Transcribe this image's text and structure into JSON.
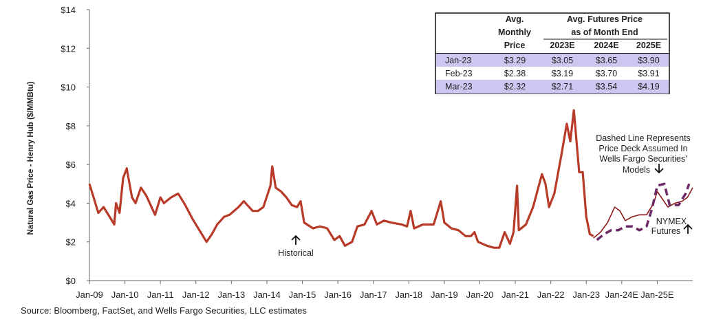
{
  "chart_data": {
    "type": "line",
    "y_label": "Natural Gas Price - Henry Hub ($/MMBtu)",
    "source": "Source: Bloomberg, FactSet, and Wells Fargo Securities, LLC estimates",
    "xlim": [
      2009,
      2026
    ],
    "xticks": [
      {
        "value": 2009,
        "label": "Jan-09"
      },
      {
        "value": 2010,
        "label": "Jan-10"
      },
      {
        "value": 2011,
        "label": "Jan-11"
      },
      {
        "value": 2012,
        "label": "Jan-12"
      },
      {
        "value": 2013,
        "label": "Jan-13"
      },
      {
        "value": 2014,
        "label": "Jan-14"
      },
      {
        "value": 2015,
        "label": "Jan-15"
      },
      {
        "value": 2016,
        "label": "Jan-16"
      },
      {
        "value": 2017,
        "label": "Jan-17"
      },
      {
        "value": 2018,
        "label": "Jan-18"
      },
      {
        "value": 2019,
        "label": "Jan-19"
      },
      {
        "value": 2020,
        "label": "Jan-20"
      },
      {
        "value": 2021,
        "label": "Jan-21"
      },
      {
        "value": 2022,
        "label": "Jan-22"
      },
      {
        "value": 2023,
        "label": "Jan-23"
      },
      {
        "value": 2024,
        "label": "Jan-24E"
      },
      {
        "value": 2025,
        "label": "Jan-25E"
      }
    ],
    "ylim": [
      0,
      14
    ],
    "yticks": [
      {
        "value": 0,
        "label": "$0"
      },
      {
        "value": 2,
        "label": "$2"
      },
      {
        "value": 4,
        "label": "$4"
      },
      {
        "value": 6,
        "label": "$6"
      },
      {
        "value": 8,
        "label": "$8"
      },
      {
        "value": 10,
        "label": "$10"
      },
      {
        "value": 12,
        "label": "$12"
      },
      {
        "value": 14,
        "label": "$14"
      }
    ],
    "series": [
      {
        "name": "Historical",
        "color": "#b83a28",
        "line_style": "solid",
        "x": [
          2009.0,
          2009.1,
          2009.25,
          2009.4,
          2009.6,
          2009.7,
          2009.75,
          2009.85,
          2009.95,
          2010.05,
          2010.2,
          2010.3,
          2010.45,
          2010.6,
          2010.85,
          2011.0,
          2011.1,
          2011.3,
          2011.5,
          2011.7,
          2011.9,
          2012.1,
          2012.3,
          2012.45,
          2012.6,
          2012.8,
          2012.95,
          2013.2,
          2013.35,
          2013.6,
          2013.75,
          2013.9,
          2014.1,
          2014.15,
          2014.25,
          2014.4,
          2014.55,
          2014.7,
          2014.85,
          2014.95,
          2015.05,
          2015.3,
          2015.5,
          2015.7,
          2015.9,
          2016.05,
          2016.2,
          2016.4,
          2016.55,
          2016.75,
          2016.95,
          2017.1,
          2017.3,
          2017.5,
          2017.8,
          2017.95,
          2018.05,
          2018.15,
          2018.4,
          2018.7,
          2018.9,
          2019.0,
          2019.2,
          2019.4,
          2019.6,
          2019.75,
          2019.85,
          2019.95,
          2020.2,
          2020.4,
          2020.55,
          2020.7,
          2020.85,
          2020.95,
          2021.05,
          2021.1,
          2021.3,
          2021.5,
          2021.75,
          2021.85,
          2021.95,
          2022.1,
          2022.3,
          2022.45,
          2022.55,
          2022.65,
          2022.8,
          2022.9,
          2023.0,
          2023.1,
          2023.2
        ],
        "values": [
          5.0,
          4.4,
          3.5,
          3.8,
          3.2,
          2.9,
          4.0,
          3.5,
          5.3,
          5.8,
          4.3,
          4.0,
          4.8,
          4.4,
          3.4,
          4.3,
          4.0,
          4.3,
          4.5,
          3.9,
          3.2,
          2.6,
          2.0,
          2.4,
          2.9,
          3.3,
          3.4,
          3.8,
          4.1,
          3.6,
          3.6,
          3.8,
          4.9,
          5.9,
          4.8,
          4.6,
          4.3,
          3.9,
          3.8,
          4.1,
          3.0,
          2.7,
          2.8,
          2.7,
          2.1,
          2.3,
          1.8,
          2.0,
          2.8,
          2.9,
          3.6,
          2.9,
          3.1,
          3.0,
          2.9,
          2.8,
          3.6,
          2.7,
          2.9,
          2.9,
          4.1,
          3.0,
          2.7,
          2.6,
          2.3,
          2.3,
          2.5,
          2.0,
          1.8,
          1.7,
          1.7,
          2.5,
          1.9,
          2.5,
          4.9,
          2.6,
          2.9,
          3.8,
          5.5,
          5.0,
          3.8,
          4.5,
          6.5,
          8.1,
          7.2,
          8.8,
          5.6,
          5.6,
          3.3,
          2.4,
          2.3
        ]
      },
      {
        "name": "NYMEX Futures",
        "color": "#8b1a1a",
        "line_style": "solid",
        "x": [
          2023.2,
          2023.4,
          2023.6,
          2023.8,
          2023.95,
          2024.1,
          2024.3,
          2024.5,
          2024.7,
          2024.9,
          2025.0,
          2025.15,
          2025.3,
          2025.5,
          2025.7,
          2025.85,
          2026.0
        ],
        "values": [
          2.2,
          2.5,
          3.0,
          3.8,
          3.6,
          3.1,
          3.3,
          3.4,
          3.4,
          4.0,
          4.6,
          4.2,
          3.8,
          4.0,
          4.1,
          4.3,
          4.8
        ]
      },
      {
        "name": "Price Deck",
        "color": "#6e2a66",
        "line_style": "dashed",
        "x": [
          2023.3,
          2023.5,
          2023.7,
          2023.9,
          2024.1,
          2024.3,
          2024.5,
          2024.7,
          2024.85,
          2025.0,
          2025.2,
          2025.35,
          2025.6,
          2025.8,
          2025.9
        ],
        "values": [
          2.1,
          2.4,
          2.6,
          2.6,
          2.8,
          2.8,
          2.6,
          2.8,
          3.7,
          4.9,
          5.0,
          3.9,
          3.9,
          4.5,
          5.0
        ]
      }
    ],
    "annotations": [
      {
        "lines": [
          "Historical"
        ]
      },
      {
        "lines": [
          "Dashed Line Represents",
          "Price Deck Assumed In",
          "Wells Fargo Securities'",
          "Models"
        ]
      },
      {
        "lines": [
          "NYMEX",
          "Futures"
        ]
      }
    ]
  },
  "table": {
    "monthly_header": [
      "Avg.",
      "Monthly",
      "Price"
    ],
    "futures_header": [
      "Avg. Futures Price",
      "as of Month End"
    ],
    "years": [
      "2023E",
      "2024E",
      "2025E"
    ],
    "rows": [
      [
        "Jan-23",
        "$3.29",
        "$3.05",
        "$3.65",
        "$3.90"
      ],
      [
        "Feb-23",
        "$2.38",
        "$3.19",
        "$3.70",
        "$3.91"
      ],
      [
        "Mar-23",
        "$2.32",
        "$2.71",
        "$3.54",
        "$4.19"
      ]
    ]
  }
}
